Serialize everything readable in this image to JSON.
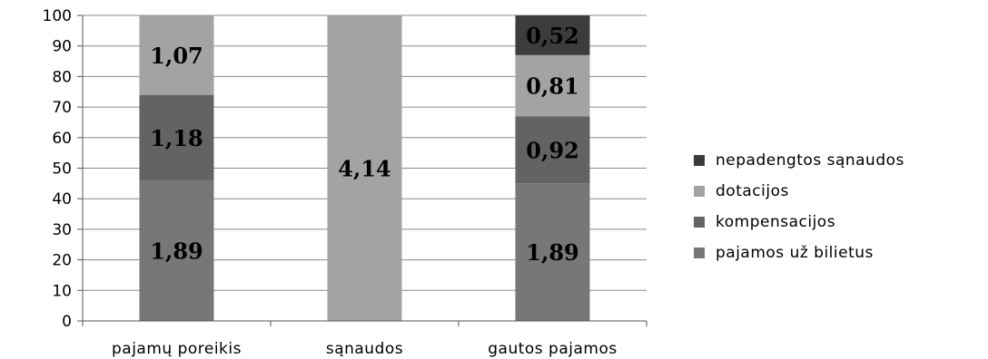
{
  "chart_data": {
    "type": "bar",
    "stacked": true,
    "categories": [
      "pajamų poreikis",
      "sąnaudos",
      "gautos pajamos"
    ],
    "ylim": [
      0,
      100
    ],
    "yticks": [
      0,
      10,
      20,
      30,
      40,
      50,
      60,
      70,
      80,
      90,
      100
    ],
    "grid": true,
    "legend_position": "right",
    "series": [
      {
        "name": "pajamos už bilietus",
        "color": "#777777",
        "values": [
          46,
          0,
          45
        ],
        "labels": [
          "1,89",
          "",
          "1,89"
        ]
      },
      {
        "name": "kompensacijos",
        "color": "#636363",
        "values": [
          28,
          0,
          22
        ],
        "labels": [
          "1,18",
          "",
          "0,92"
        ]
      },
      {
        "name": "dotacijos",
        "color": "#a3a3a3",
        "values": [
          26,
          100,
          20
        ],
        "labels": [
          "1,07",
          "4,14",
          "0,81"
        ]
      },
      {
        "name": "nepadengtos sąnaudos",
        "color": "#3c3c3c",
        "values": [
          0,
          0,
          13
        ],
        "labels": [
          "",
          "",
          "0,52"
        ]
      }
    ],
    "legend_order": [
      "nepadengtos sąnaudos",
      "dotacijos",
      "kompensacijos",
      "pajamos už bilietus"
    ]
  }
}
